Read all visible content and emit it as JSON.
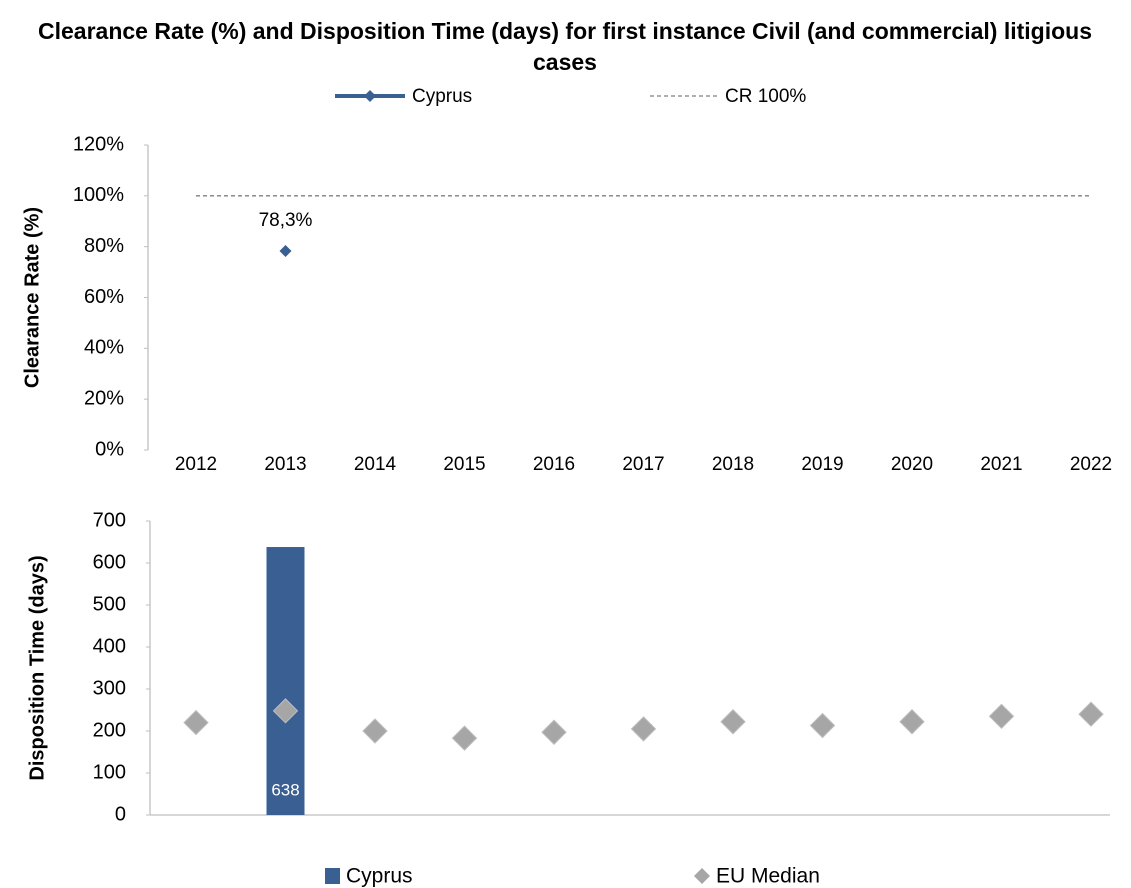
{
  "chart_data": [
    {
      "type": "line",
      "title": "Clearance Rate (%) and Disposition Time (days) for first instance Civil (and commercial) litigious cases",
      "ylabel": "Clearance Rate (%)",
      "categories": [
        "2012",
        "2013",
        "2014",
        "2015",
        "2016",
        "2017",
        "2018",
        "2019",
        "2020",
        "2021",
        "2022"
      ],
      "series": [
        {
          "name": "Cyprus",
          "color": "#3a5f93",
          "values": [
            null,
            78.3,
            null,
            null,
            null,
            null,
            null,
            null,
            null,
            null,
            null
          ],
          "value_labels": [
            null,
            "78,3%",
            null,
            null,
            null,
            null,
            null,
            null,
            null,
            null,
            null
          ]
        },
        {
          "name": "CR 100%",
          "color": "#7f7f7f",
          "dashed": true,
          "values": [
            100,
            100,
            100,
            100,
            100,
            100,
            100,
            100,
            100,
            100,
            100
          ]
        }
      ],
      "ylim": [
        0,
        120
      ],
      "yticks": [
        {
          "value": 0,
          "label": "0%"
        },
        {
          "value": 20,
          "label": "20%"
        },
        {
          "value": 40,
          "label": "40%"
        },
        {
          "value": 60,
          "label": "60%"
        },
        {
          "value": 80,
          "label": "80%"
        },
        {
          "value": 100,
          "label": "100%"
        },
        {
          "value": 120,
          "label": "120%"
        }
      ],
      "legend": "top"
    },
    {
      "type": "bar",
      "ylabel": "Disposition Time (days)",
      "series": [
        {
          "name": "Cyprus",
          "color": "#3a5f93",
          "values": [
            null,
            638,
            null,
            null,
            null,
            null,
            null,
            null,
            null,
            null,
            null
          ]
        },
        {
          "name": "EU Median",
          "color": "#a6a6a6",
          "marker": "diamond",
          "values": [
            220,
            248,
            200,
            183,
            197,
            205,
            222,
            213,
            222,
            235,
            240
          ]
        }
      ],
      "ylim": [
        0,
        700
      ],
      "yticks": [
        0,
        100,
        200,
        300,
        400,
        500,
        600,
        700
      ],
      "legend": "bottom"
    }
  ]
}
